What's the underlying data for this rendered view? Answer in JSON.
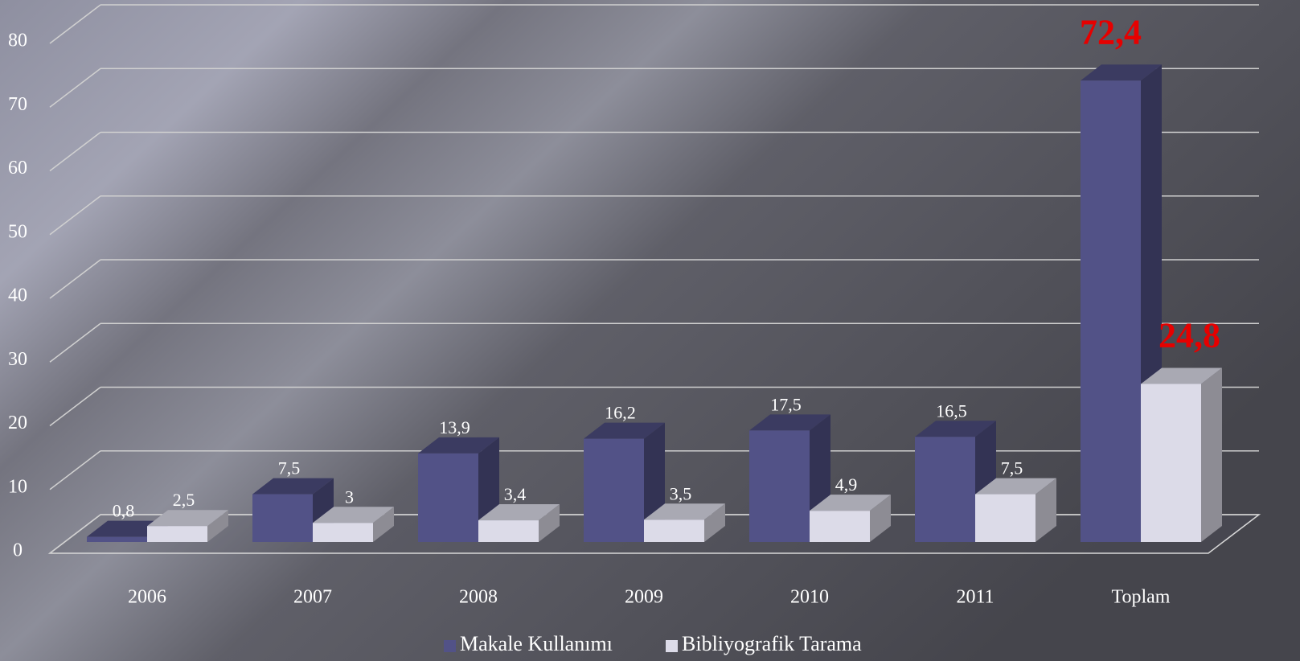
{
  "chart_data": {
    "type": "bar3d",
    "categories": [
      "2006",
      "2007",
      "2008",
      "2009",
      "2010",
      "2011",
      "Toplam"
    ],
    "series": [
      {
        "name": "Makale Kullanımı",
        "color": "#525287",
        "values": [
          0.8,
          7.5,
          13.9,
          16.2,
          17.5,
          16.5,
          72.4
        ],
        "value_labels": [
          "0,8",
          "7,5",
          "13,9",
          "16,2",
          "17,5",
          "16,5",
          "72,4"
        ]
      },
      {
        "name": "Bibliyografik Tarama",
        "color": "#dcdbe8",
        "values": [
          2.5,
          3,
          3.4,
          3.5,
          4.9,
          7.5,
          24.8
        ],
        "value_labels": [
          "2,5",
          "3",
          "3,4",
          "3,5",
          "4,9",
          "7,5",
          "24,8"
        ]
      }
    ],
    "ylim": [
      0,
      80
    ],
    "yticks": [
      0,
      10,
      20,
      30,
      40,
      50,
      60,
      70,
      80
    ],
    "grid": true,
    "legend": "bottom",
    "highlight_label_color": "#e60000"
  }
}
